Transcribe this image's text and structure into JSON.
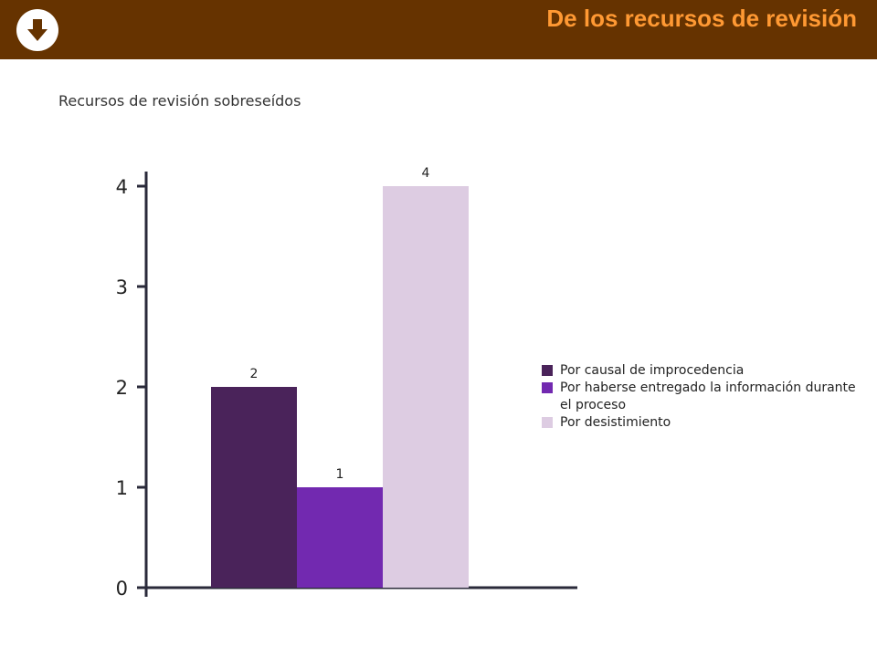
{
  "header": {
    "title": "De los recursos de revisión",
    "button_icon": "arrow-down-icon",
    "background_color": "#663300",
    "title_color": "#FF9933"
  },
  "chart_data": {
    "type": "bar",
    "title": "Recursos de revisión sobreseídos",
    "xlabel": "",
    "ylabel": "",
    "ylim": [
      0,
      4
    ],
    "yticks": [
      "0",
      "1",
      "2",
      "3",
      "4"
    ],
    "grid": false,
    "legend_position": "right",
    "series": [
      {
        "name": "Por causal de improcedencia",
        "value": 2,
        "label": "2",
        "color": "#4A235A"
      },
      {
        "name": "Por haberse entregado la información durante el proceso",
        "value": 1,
        "label": "1",
        "color": "#7229B0"
      },
      {
        "name": "Por desistimiento",
        "value": 4,
        "label": "4",
        "color": "#DDCCE2"
      }
    ]
  }
}
